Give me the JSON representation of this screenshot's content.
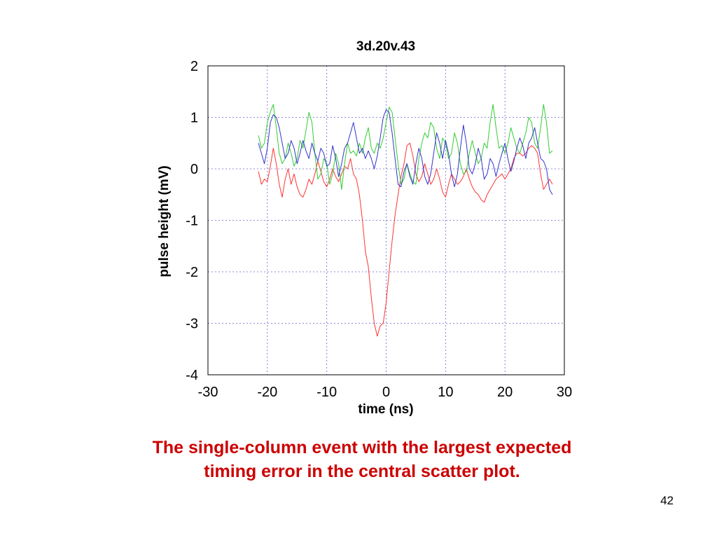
{
  "chart_data": {
    "type": "line",
    "title": "3d.20v.43",
    "xlabel": "time (ns)",
    "ylabel": "pulse height (mV)",
    "xlim": [
      -30,
      30
    ],
    "ylim": [
      -4,
      2
    ],
    "xticks": [
      "-30",
      "-20",
      "-10",
      "0",
      "10",
      "20",
      "30"
    ],
    "yticks": [
      "2",
      "1",
      "0",
      "-1",
      "-2",
      "-3",
      "-4"
    ],
    "grid": true,
    "legend": "none",
    "series": [
      {
        "color": "#ff3333",
        "x": [
          -21.5,
          -21,
          -20.5,
          -20,
          -19.5,
          -19,
          -18.5,
          -18,
          -17.5,
          -17,
          -16.5,
          -16,
          -15.5,
          -15,
          -14.5,
          -14,
          -13.5,
          -13,
          -12.5,
          -12,
          -11.5,
          -11,
          -10.5,
          -10,
          -9.5,
          -9,
          -8.5,
          -8,
          -7.5,
          -7,
          -6.5,
          -6,
          -5.5,
          -5,
          -4.5,
          -4,
          -3.5,
          -3,
          -2.5,
          -2,
          -1.5,
          -1,
          -0.5,
          0,
          0.5,
          1,
          1.5,
          2,
          2.5,
          3,
          3.5,
          4,
          4.5,
          5,
          5.5,
          6,
          6.5,
          7,
          7.5,
          8,
          8.5,
          9,
          9.5,
          10,
          10.5,
          11,
          11.5,
          12,
          12.5,
          13,
          13.5,
          14,
          14.5,
          15,
          15.5,
          16,
          16.5,
          17,
          17.5,
          18,
          18.5,
          19,
          19.5,
          20,
          20.5,
          21,
          21.5,
          22,
          22.5,
          23,
          23.5,
          24,
          24.5,
          25,
          25.5,
          26,
          26.5,
          27,
          27.5,
          28
        ],
        "y": [
          -0.05,
          -0.3,
          -0.2,
          -0.25,
          0.05,
          0.4,
          0.1,
          -0.3,
          -0.55,
          -0.2,
          0,
          -0.3,
          -0.1,
          -0.35,
          -0.5,
          -0.55,
          -0.4,
          -0.2,
          -0.3,
          -0.1,
          0.15,
          -0.05,
          -0.25,
          -0.35,
          -0.2,
          0,
          -0.15,
          -0.25,
          -0.1,
          0.05,
          0,
          0.2,
          -0.1,
          -0.2,
          -0.5,
          -1.0,
          -1.6,
          -1.9,
          -2.5,
          -3.0,
          -3.25,
          -3.05,
          -3.0,
          -2.6,
          -2.0,
          -1.4,
          -0.9,
          -0.5,
          -0.15,
          0.1,
          0.45,
          0.5,
          0.25,
          -0.1,
          -0.25,
          -0.15,
          0.1,
          -0.1,
          -0.3,
          -0.2,
          0,
          -0.2,
          -0.45,
          -0.55,
          -0.3,
          -0.1,
          -0.2,
          -0.3,
          -0.25,
          -0.15,
          0,
          -0.2,
          -0.35,
          -0.45,
          -0.5,
          -0.6,
          -0.65,
          -0.5,
          -0.4,
          -0.3,
          -0.2,
          -0.15,
          -0.1,
          -0.2,
          -0.1,
          0,
          0.2,
          0.3,
          0.3,
          0.25,
          0.3,
          0.4,
          0.45,
          0.4,
          0.3,
          -0.1,
          -0.4,
          -0.3,
          -0.2,
          -0.3
        ]
      },
      {
        "color": "#33cc33",
        "x": [
          -21.5,
          -21,
          -20.5,
          -20,
          -19.5,
          -19,
          -18.5,
          -18,
          -17.5,
          -17,
          -16.5,
          -16,
          -15.5,
          -15,
          -14.5,
          -14,
          -13.5,
          -13,
          -12.5,
          -12,
          -11.5,
          -11,
          -10.5,
          -10,
          -9.5,
          -9,
          -8.5,
          -8,
          -7.5,
          -7,
          -6.5,
          -6,
          -5.5,
          -5,
          -4.5,
          -4,
          -3.5,
          -3,
          -2.5,
          -2,
          -1.5,
          -1,
          -0.5,
          0,
          0.5,
          1,
          1.5,
          2,
          2.5,
          3,
          3.5,
          4,
          4.5,
          5,
          5.5,
          6,
          6.5,
          7,
          7.5,
          8,
          8.5,
          9,
          9.5,
          10,
          10.5,
          11,
          11.5,
          12,
          12.5,
          13,
          13.5,
          14,
          14.5,
          15,
          15.5,
          16,
          16.5,
          17,
          17.5,
          18,
          18.5,
          19,
          19.5,
          20,
          20.5,
          21,
          21.5,
          22,
          22.5,
          23,
          23.5,
          24,
          24.5,
          25,
          25.5,
          26,
          26.5,
          27,
          27.5,
          28
        ],
        "y": [
          0.65,
          0.4,
          0.5,
          0.9,
          1.1,
          1.25,
          0.8,
          0.3,
          0.1,
          0.2,
          0.5,
          0.3,
          0.05,
          0.2,
          0.55,
          0.4,
          0.75,
          1.1,
          0.9,
          0.3,
          -0.2,
          -0.1,
          0.2,
          0.1,
          -0.3,
          -0.1,
          0.3,
          0.1,
          -0.4,
          0.1,
          0.5,
          0.3,
          0.35,
          0.25,
          0.5,
          0.3,
          0.6,
          0.8,
          0.4,
          0.3,
          0.5,
          0.4,
          0.6,
          0.9,
          1.2,
          1.1,
          0.6,
          0.1,
          -0.3,
          -0.2,
          0.1,
          -0.1,
          -0.25,
          -0.3,
          0.2,
          0.5,
          0.7,
          0.6,
          0.9,
          0.8,
          0.4,
          0.2,
          0.6,
          0.5,
          0.2,
          0.3,
          0.7,
          0.5,
          0.1,
          -0.1,
          -0.05,
          0.3,
          0.55,
          0.3,
          0.1,
          0.2,
          0.5,
          0.4,
          0.9,
          1.25,
          0.8,
          0.4,
          0.45,
          0.3,
          0.5,
          0.8,
          0.6,
          0.4,
          0.3,
          0.5,
          0.7,
          1.0,
          0.9,
          0.5,
          0.4,
          0.8,
          1.25,
          0.9,
          0.3,
          0.35
        ]
      },
      {
        "color": "#3333cc",
        "x": [
          -21.5,
          -21,
          -20.5,
          -20,
          -19.5,
          -19,
          -18.5,
          -18,
          -17.5,
          -17,
          -16.5,
          -16,
          -15.5,
          -15,
          -14.5,
          -14,
          -13.5,
          -13,
          -12.5,
          -12,
          -11.5,
          -11,
          -10.5,
          -10,
          -9.5,
          -9,
          -8.5,
          -8,
          -7.5,
          -7,
          -6.5,
          -6,
          -5.5,
          -5,
          -4.5,
          -4,
          -3.5,
          -3,
          -2.5,
          -2,
          -1.5,
          -1,
          -0.5,
          0,
          0.5,
          1,
          1.5,
          2,
          2.5,
          3,
          3.5,
          4,
          4.5,
          5,
          5.5,
          6,
          6.5,
          7,
          7.5,
          8,
          8.5,
          9,
          9.5,
          10,
          10.5,
          11,
          11.5,
          12,
          12.5,
          13,
          13.5,
          14,
          14.5,
          15,
          15.5,
          16,
          16.5,
          17,
          17.5,
          18,
          18.5,
          19,
          19.5,
          20,
          20.5,
          21,
          21.5,
          22,
          22.5,
          23,
          23.5,
          24,
          24.5,
          25,
          25.5,
          26,
          26.5,
          27,
          27.5,
          28
        ],
        "y": [
          0.5,
          0.3,
          0.1,
          0.4,
          0.9,
          1.05,
          1.0,
          0.8,
          0.5,
          0.2,
          0.3,
          0.55,
          0.4,
          0.1,
          0.3,
          0.55,
          0.35,
          0.2,
          0.5,
          0.3,
          0.15,
          0.4,
          0.3,
          0.05,
          0.1,
          0.45,
          0.2,
          -0.15,
          0.1,
          0.4,
          0.5,
          0.7,
          0.9,
          0.6,
          0.3,
          0.4,
          0.2,
          0.35,
          0.2,
          0.0,
          0.25,
          0.6,
          1.0,
          1.15,
          1.1,
          0.7,
          0.2,
          -0.3,
          -0.35,
          -0.05,
          0.1,
          -0.15,
          -0.3,
          0.1,
          0.4,
          0.2,
          -0.15,
          -0.3,
          -0.1,
          0.3,
          0.7,
          0.5,
          0.2,
          0.55,
          0.3,
          -0.1,
          -0.35,
          -0.1,
          0.4,
          0.85,
          0.5,
          0.0,
          -0.1,
          0.1,
          0.4,
          0.2,
          -0.2,
          -0.1,
          0.2,
          0.1,
          -0.15,
          0.1,
          0.3,
          0.5,
          0.2,
          -0.05,
          0.15,
          0.4,
          0.6,
          0.45,
          0.2,
          0.5,
          0.6,
          0.8,
          0.5,
          0.2,
          0.15,
          0.0,
          -0.4,
          -0.5
        ]
      }
    ]
  },
  "caption": {
    "line1": "The single-column event with the largest expected",
    "line2": "timing error in the central scatter plot."
  },
  "slide_number": "42"
}
